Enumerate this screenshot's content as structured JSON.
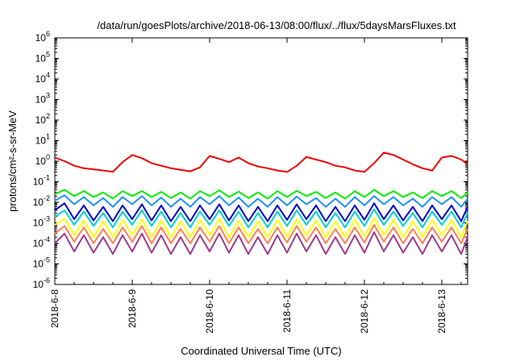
{
  "chart_data": {
    "type": "line",
    "title": "/data/run/goesPlots/archive/2018-06-13/08:00/flux/../flux/5daysMarsFluxes.txt",
    "xlabel": "Coordinated Universal Time (UTC)",
    "ylabel": "protons/cm²-s-sr-MeV",
    "y_scale": "log",
    "ylim": [
      1e-06,
      1000000.0
    ],
    "xlim": [
      "2018-06-08",
      "2018-06-13 08:00"
    ],
    "grid": false,
    "legend": "none",
    "y_ticks": [
      {
        "value": 1e-06,
        "base": "10",
        "exp": "-6"
      },
      {
        "value": 1e-05,
        "base": "10",
        "exp": "-5"
      },
      {
        "value": 0.0001,
        "base": "10",
        "exp": "-4"
      },
      {
        "value": 0.001,
        "base": "10",
        "exp": "-3"
      },
      {
        "value": 0.01,
        "base": "10",
        "exp": "-2"
      },
      {
        "value": 0.1,
        "base": "10",
        "exp": "-1"
      },
      {
        "value": 1,
        "base": "10",
        "exp": "0"
      },
      {
        "value": 10,
        "base": "10",
        "exp": "1"
      },
      {
        "value": 100,
        "base": "10",
        "exp": "2"
      },
      {
        "value": 1000,
        "base": "10",
        "exp": "3"
      },
      {
        "value": 10000,
        "base": "10",
        "exp": "4"
      },
      {
        "value": 100000,
        "base": "10",
        "exp": "5"
      },
      {
        "value": 1000000,
        "base": "10",
        "exp": "6"
      }
    ],
    "x_ticks": [
      {
        "value": "2018-06-08",
        "label": "2018-6-8"
      },
      {
        "value": "2018-06-09",
        "label": "2018-6-9"
      },
      {
        "value": "2018-06-10",
        "label": "2018-6-10"
      },
      {
        "value": "2018-06-11",
        "label": "2018-6-11"
      },
      {
        "value": "2018-06-12",
        "label": "2018-6-12"
      },
      {
        "value": "2018-06-13",
        "label": "2018-6-13"
      }
    ],
    "series": [
      {
        "color": "#ee0000",
        "x": [
          "2018-06-08 00:00",
          "2018-06-08 03:00",
          "2018-06-08 06:00",
          "2018-06-08 09:00",
          "2018-06-08 12:00",
          "2018-06-08 15:00",
          "2018-06-08 18:00",
          "2018-06-08 21:00",
          "2018-06-09 00:00",
          "2018-06-09 03:00",
          "2018-06-09 06:00",
          "2018-06-09 09:00",
          "2018-06-09 12:00",
          "2018-06-09 15:00",
          "2018-06-09 18:00",
          "2018-06-09 21:00",
          "2018-06-10 00:00",
          "2018-06-10 03:00",
          "2018-06-10 06:00",
          "2018-06-10 09:00",
          "2018-06-10 12:00",
          "2018-06-10 15:00",
          "2018-06-10 18:00",
          "2018-06-10 21:00",
          "2018-06-11 00:00",
          "2018-06-11 03:00",
          "2018-06-11 06:00",
          "2018-06-11 09:00",
          "2018-06-11 12:00",
          "2018-06-11 15:00",
          "2018-06-11 18:00",
          "2018-06-11 21:00",
          "2018-06-12 00:00",
          "2018-06-12 03:00",
          "2018-06-12 06:00",
          "2018-06-12 09:00",
          "2018-06-12 12:00",
          "2018-06-12 15:00",
          "2018-06-12 18:00",
          "2018-06-12 21:00",
          "2018-06-13 00:00",
          "2018-06-13 03:00",
          "2018-06-13 06:00",
          "2018-06-13 08:00"
        ],
        "y": [
          1.5,
          1.0,
          0.6,
          0.45,
          0.4,
          0.35,
          0.3,
          0.9,
          2.0,
          1.4,
          0.8,
          0.6,
          0.45,
          0.38,
          0.32,
          0.5,
          1.8,
          1.3,
          0.9,
          1.5,
          0.8,
          0.55,
          0.45,
          0.35,
          0.3,
          0.6,
          1.6,
          1.2,
          0.9,
          0.6,
          0.5,
          0.35,
          0.3,
          0.8,
          2.6,
          2.0,
          1.2,
          0.7,
          0.45,
          0.35,
          1.5,
          1.8,
          1.2,
          0.7
        ]
      },
      {
        "color": "#00ee00",
        "x": [
          "2018-06-08 00:00",
          "2018-06-08 03:00",
          "2018-06-08 06:00",
          "2018-06-08 09:00",
          "2018-06-08 12:00",
          "2018-06-08 15:00",
          "2018-06-08 18:00",
          "2018-06-08 21:00",
          "2018-06-09 00:00",
          "2018-06-09 03:00",
          "2018-06-09 06:00",
          "2018-06-09 09:00",
          "2018-06-09 12:00",
          "2018-06-09 15:00",
          "2018-06-09 18:00",
          "2018-06-09 21:00",
          "2018-06-10 00:00",
          "2018-06-10 03:00",
          "2018-06-10 06:00",
          "2018-06-10 09:00",
          "2018-06-10 12:00",
          "2018-06-10 15:00",
          "2018-06-10 18:00",
          "2018-06-10 21:00",
          "2018-06-11 00:00",
          "2018-06-11 03:00",
          "2018-06-11 06:00",
          "2018-06-11 09:00",
          "2018-06-11 12:00",
          "2018-06-11 15:00",
          "2018-06-11 18:00",
          "2018-06-11 21:00",
          "2018-06-12 00:00",
          "2018-06-12 03:00",
          "2018-06-12 06:00",
          "2018-06-12 09:00",
          "2018-06-12 12:00",
          "2018-06-12 15:00",
          "2018-06-12 18:00",
          "2018-06-12 21:00",
          "2018-06-13 00:00",
          "2018-06-13 03:00",
          "2018-06-13 06:00",
          "2018-06-13 08:00"
        ],
        "y": [
          0.025,
          0.04,
          0.02,
          0.035,
          0.018,
          0.03,
          0.015,
          0.035,
          0.02,
          0.035,
          0.018,
          0.032,
          0.016,
          0.03,
          0.015,
          0.035,
          0.02,
          0.038,
          0.018,
          0.033,
          0.016,
          0.03,
          0.015,
          0.035,
          0.018,
          0.036,
          0.02,
          0.032,
          0.016,
          0.03,
          0.015,
          0.035,
          0.018,
          0.04,
          0.02,
          0.035,
          0.018,
          0.03,
          0.016,
          0.035,
          0.02,
          0.035,
          0.016,
          0.03
        ]
      },
      {
        "color": "#1e90ff",
        "x": [
          "2018-06-08 00:00",
          "2018-06-08 03:00",
          "2018-06-08 06:00",
          "2018-06-08 09:00",
          "2018-06-08 12:00",
          "2018-06-08 15:00",
          "2018-06-08 18:00",
          "2018-06-08 21:00",
          "2018-06-09 00:00",
          "2018-06-09 03:00",
          "2018-06-09 06:00",
          "2018-06-09 09:00",
          "2018-06-09 12:00",
          "2018-06-09 15:00",
          "2018-06-09 18:00",
          "2018-06-09 21:00",
          "2018-06-10 00:00",
          "2018-06-10 03:00",
          "2018-06-10 06:00",
          "2018-06-10 09:00",
          "2018-06-10 12:00",
          "2018-06-10 15:00",
          "2018-06-10 18:00",
          "2018-06-10 21:00",
          "2018-06-11 00:00",
          "2018-06-11 03:00",
          "2018-06-11 06:00",
          "2018-06-11 09:00",
          "2018-06-11 12:00",
          "2018-06-11 15:00",
          "2018-06-11 18:00",
          "2018-06-11 21:00",
          "2018-06-12 00:00",
          "2018-06-12 03:00",
          "2018-06-12 06:00",
          "2018-06-12 09:00",
          "2018-06-12 12:00",
          "2018-06-12 15:00",
          "2018-06-12 18:00",
          "2018-06-12 21:00",
          "2018-06-13 00:00",
          "2018-06-13 03:00",
          "2018-06-13 06:00",
          "2018-06-13 08:00"
        ],
        "y": [
          0.012,
          0.022,
          0.008,
          0.018,
          0.007,
          0.016,
          0.006,
          0.018,
          0.008,
          0.02,
          0.007,
          0.017,
          0.006,
          0.015,
          0.006,
          0.018,
          0.008,
          0.02,
          0.007,
          0.017,
          0.006,
          0.015,
          0.006,
          0.018,
          0.007,
          0.019,
          0.008,
          0.016,
          0.006,
          0.015,
          0.006,
          0.018,
          0.007,
          0.02,
          0.008,
          0.018,
          0.007,
          0.015,
          0.006,
          0.018,
          0.008,
          0.018,
          0.006,
          0.015
        ]
      },
      {
        "color": "#0000cd",
        "x": [
          "2018-06-08 00:00",
          "2018-06-08 03:00",
          "2018-06-08 06:00",
          "2018-06-08 09:00",
          "2018-06-08 12:00",
          "2018-06-08 15:00",
          "2018-06-08 18:00",
          "2018-06-08 21:00",
          "2018-06-09 00:00",
          "2018-06-09 03:00",
          "2018-06-09 06:00",
          "2018-06-09 09:00",
          "2018-06-09 12:00",
          "2018-06-09 15:00",
          "2018-06-09 18:00",
          "2018-06-09 21:00",
          "2018-06-10 00:00",
          "2018-06-10 03:00",
          "2018-06-10 06:00",
          "2018-06-10 09:00",
          "2018-06-10 12:00",
          "2018-06-10 15:00",
          "2018-06-10 18:00",
          "2018-06-10 21:00",
          "2018-06-11 00:00",
          "2018-06-11 03:00",
          "2018-06-11 06:00",
          "2018-06-11 09:00",
          "2018-06-11 12:00",
          "2018-06-11 15:00",
          "2018-06-11 18:00",
          "2018-06-11 21:00",
          "2018-06-12 00:00",
          "2018-06-12 03:00",
          "2018-06-12 06:00",
          "2018-06-12 09:00",
          "2018-06-12 12:00",
          "2018-06-12 15:00",
          "2018-06-12 18:00",
          "2018-06-12 21:00",
          "2018-06-13 00:00",
          "2018-06-13 03:00",
          "2018-06-13 06:00",
          "2018-06-13 08:00"
        ],
        "y": [
          0.004,
          0.009,
          0.0015,
          0.007,
          0.0013,
          0.006,
          0.0012,
          0.007,
          0.0015,
          0.008,
          0.0013,
          0.007,
          0.0012,
          0.006,
          0.0012,
          0.007,
          0.0015,
          0.008,
          0.0013,
          0.007,
          0.0012,
          0.006,
          0.0012,
          0.007,
          0.0014,
          0.008,
          0.0015,
          0.007,
          0.0012,
          0.006,
          0.0012,
          0.007,
          0.0014,
          0.009,
          0.0015,
          0.007,
          0.0013,
          0.006,
          0.0012,
          0.007,
          0.0015,
          0.007,
          0.0012,
          0.006
        ]
      },
      {
        "color": "#00ced1",
        "x": [
          "2018-06-08 00:00",
          "2018-06-08 03:00",
          "2018-06-08 06:00",
          "2018-06-08 09:00",
          "2018-06-08 12:00",
          "2018-06-08 15:00",
          "2018-06-08 18:00",
          "2018-06-08 21:00",
          "2018-06-09 00:00",
          "2018-06-09 03:00",
          "2018-06-09 06:00",
          "2018-06-09 09:00",
          "2018-06-09 12:00",
          "2018-06-09 15:00",
          "2018-06-09 18:00",
          "2018-06-09 21:00",
          "2018-06-10 00:00",
          "2018-06-10 03:00",
          "2018-06-10 06:00",
          "2018-06-10 09:00",
          "2018-06-10 12:00",
          "2018-06-10 15:00",
          "2018-06-10 18:00",
          "2018-06-10 21:00",
          "2018-06-11 00:00",
          "2018-06-11 03:00",
          "2018-06-11 06:00",
          "2018-06-11 09:00",
          "2018-06-11 12:00",
          "2018-06-11 15:00",
          "2018-06-11 18:00",
          "2018-06-11 21:00",
          "2018-06-12 00:00",
          "2018-06-12 03:00",
          "2018-06-12 06:00",
          "2018-06-12 09:00",
          "2018-06-12 12:00",
          "2018-06-12 15:00",
          "2018-06-12 18:00",
          "2018-06-12 21:00",
          "2018-06-13 00:00",
          "2018-06-13 03:00",
          "2018-06-13 06:00",
          "2018-06-13 08:00"
        ],
        "y": [
          0.002,
          0.004,
          0.0008,
          0.0035,
          0.0007,
          0.003,
          0.0006,
          0.0035,
          0.0008,
          0.004,
          0.0007,
          0.0035,
          0.0006,
          0.003,
          0.0006,
          0.0035,
          0.0008,
          0.004,
          0.0007,
          0.0035,
          0.0006,
          0.003,
          0.0006,
          0.0035,
          0.0007,
          0.004,
          0.0008,
          0.0035,
          0.0006,
          0.003,
          0.0006,
          0.0035,
          0.0007,
          0.0045,
          0.0008,
          0.0035,
          0.0007,
          0.003,
          0.0006,
          0.0035,
          0.0008,
          0.0035,
          0.0006,
          0.003
        ]
      },
      {
        "color": "#ffff00",
        "x": [
          "2018-06-08 00:00",
          "2018-06-08 03:00",
          "2018-06-08 06:00",
          "2018-06-08 09:00",
          "2018-06-08 12:00",
          "2018-06-08 15:00",
          "2018-06-08 18:00",
          "2018-06-08 21:00",
          "2018-06-09 00:00",
          "2018-06-09 03:00",
          "2018-06-09 06:00",
          "2018-06-09 09:00",
          "2018-06-09 12:00",
          "2018-06-09 15:00",
          "2018-06-09 18:00",
          "2018-06-09 21:00",
          "2018-06-10 00:00",
          "2018-06-10 03:00",
          "2018-06-10 06:00",
          "2018-06-10 09:00",
          "2018-06-10 12:00",
          "2018-06-10 15:00",
          "2018-06-10 18:00",
          "2018-06-10 21:00",
          "2018-06-11 00:00",
          "2018-06-11 03:00",
          "2018-06-11 06:00",
          "2018-06-11 09:00",
          "2018-06-11 12:00",
          "2018-06-11 15:00",
          "2018-06-11 18:00",
          "2018-06-11 21:00",
          "2018-06-12 00:00",
          "2018-06-12 03:00",
          "2018-06-12 06:00",
          "2018-06-12 09:00",
          "2018-06-12 12:00",
          "2018-06-12 15:00",
          "2018-06-12 18:00",
          "2018-06-12 21:00",
          "2018-06-13 00:00",
          "2018-06-13 03:00",
          "2018-06-13 06:00",
          "2018-06-13 08:00"
        ],
        "y": [
          0.0008,
          0.0016,
          0.00025,
          0.0013,
          0.0002,
          0.0012,
          0.0002,
          0.0014,
          0.00025,
          0.0015,
          0.0002,
          0.0013,
          0.0002,
          0.0012,
          0.0002,
          0.0014,
          0.00025,
          0.0016,
          0.0002,
          0.0013,
          0.0002,
          0.0012,
          0.0002,
          0.0014,
          0.00022,
          0.0015,
          0.00025,
          0.0013,
          0.0002,
          0.0012,
          0.0002,
          0.0014,
          0.00022,
          0.0017,
          0.00025,
          0.0014,
          0.0002,
          0.0012,
          0.0002,
          0.0014,
          0.00025,
          0.0014,
          0.0002,
          0.0012
        ]
      },
      {
        "color": "#ff7f50",
        "x": [
          "2018-06-08 00:00",
          "2018-06-08 03:00",
          "2018-06-08 06:00",
          "2018-06-08 09:00",
          "2018-06-08 12:00",
          "2018-06-08 15:00",
          "2018-06-08 18:00",
          "2018-06-08 21:00",
          "2018-06-09 00:00",
          "2018-06-09 03:00",
          "2018-06-09 06:00",
          "2018-06-09 09:00",
          "2018-06-09 12:00",
          "2018-06-09 15:00",
          "2018-06-09 18:00",
          "2018-06-09 21:00",
          "2018-06-10 00:00",
          "2018-06-10 03:00",
          "2018-06-10 06:00",
          "2018-06-10 09:00",
          "2018-06-10 12:00",
          "2018-06-10 15:00",
          "2018-06-10 18:00",
          "2018-06-10 21:00",
          "2018-06-11 00:00",
          "2018-06-11 03:00",
          "2018-06-11 06:00",
          "2018-06-11 09:00",
          "2018-06-11 12:00",
          "2018-06-11 15:00",
          "2018-06-11 18:00",
          "2018-06-11 21:00",
          "2018-06-12 00:00",
          "2018-06-12 03:00",
          "2018-06-12 06:00",
          "2018-06-12 09:00",
          "2018-06-12 12:00",
          "2018-06-12 15:00",
          "2018-06-12 18:00",
          "2018-06-12 21:00",
          "2018-06-13 00:00",
          "2018-06-13 03:00",
          "2018-06-13 06:00",
          "2018-06-13 08:00"
        ],
        "y": [
          0.0003,
          0.0007,
          0.00012,
          0.0006,
          0.0001,
          0.0005,
          0.0001,
          0.0006,
          0.00012,
          0.0007,
          0.0001,
          0.0006,
          0.0001,
          0.0005,
          0.0001,
          0.0006,
          0.00012,
          0.0007,
          0.0001,
          0.0006,
          0.0001,
          0.0005,
          0.0001,
          0.0006,
          0.00011,
          0.0007,
          0.00012,
          0.0006,
          0.0001,
          0.0005,
          0.0001,
          0.0006,
          0.00011,
          0.0008,
          0.00012,
          0.0006,
          0.0001,
          0.0005,
          0.0001,
          0.0006,
          0.00012,
          0.0006,
          0.0001,
          0.0005
        ]
      },
      {
        "color": "#9b3a8c",
        "x": [
          "2018-06-08 00:00",
          "2018-06-08 03:00",
          "2018-06-08 06:00",
          "2018-06-08 09:00",
          "2018-06-08 12:00",
          "2018-06-08 15:00",
          "2018-06-08 18:00",
          "2018-06-08 21:00",
          "2018-06-09 00:00",
          "2018-06-09 03:00",
          "2018-06-09 06:00",
          "2018-06-09 09:00",
          "2018-06-09 12:00",
          "2018-06-09 15:00",
          "2018-06-09 18:00",
          "2018-06-09 21:00",
          "2018-06-10 00:00",
          "2018-06-10 03:00",
          "2018-06-10 06:00",
          "2018-06-10 09:00",
          "2018-06-10 12:00",
          "2018-06-10 15:00",
          "2018-06-10 18:00",
          "2018-06-10 21:00",
          "2018-06-11 00:00",
          "2018-06-11 03:00",
          "2018-06-11 06:00",
          "2018-06-11 09:00",
          "2018-06-11 12:00",
          "2018-06-11 15:00",
          "2018-06-11 18:00",
          "2018-06-11 21:00",
          "2018-06-12 00:00",
          "2018-06-12 03:00",
          "2018-06-12 06:00",
          "2018-06-12 09:00",
          "2018-06-12 12:00",
          "2018-06-12 15:00",
          "2018-06-12 18:00",
          "2018-06-12 21:00",
          "2018-06-13 00:00",
          "2018-06-13 03:00",
          "2018-06-13 06:00",
          "2018-06-13 08:00"
        ],
        "y": [
          0.0001,
          0.0003,
          4e-05,
          0.00025,
          3.5e-05,
          0.0002,
          3e-05,
          0.00025,
          4e-05,
          0.0003,
          3.5e-05,
          0.00025,
          3e-05,
          0.0002,
          3e-05,
          0.00025,
          4e-05,
          0.0003,
          3.5e-05,
          0.00025,
          3e-05,
          0.0002,
          3e-05,
          0.00025,
          3.5e-05,
          0.0003,
          4e-05,
          0.00025,
          3e-05,
          0.0002,
          3e-05,
          0.00025,
          3.5e-05,
          0.00035,
          4e-05,
          0.00025,
          3.5e-05,
          0.0002,
          3e-05,
          0.00025,
          4e-05,
          0.00025,
          3e-05,
          0.0002
        ]
      }
    ]
  }
}
